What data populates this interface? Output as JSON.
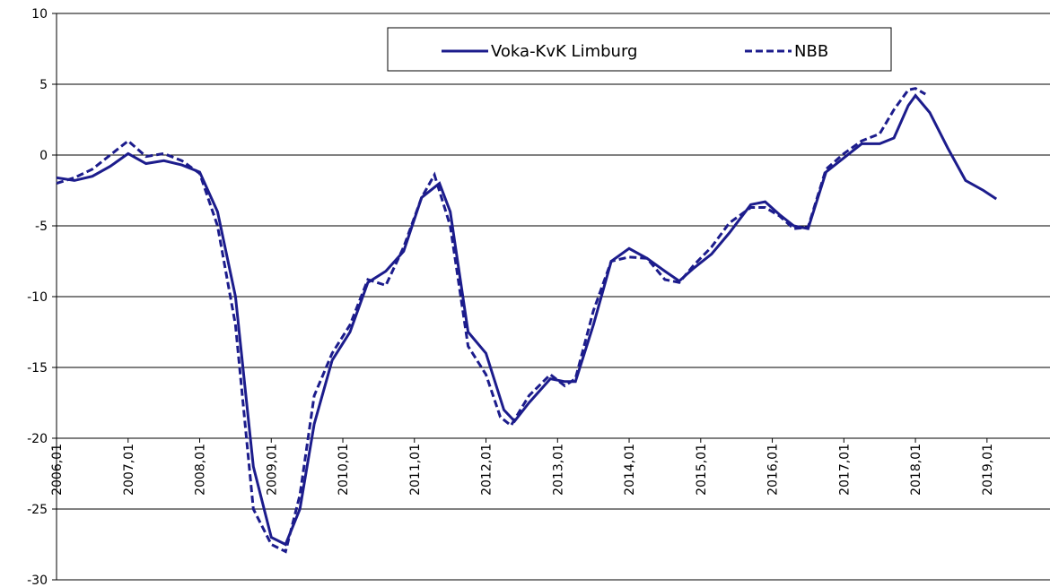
{
  "chart_data": {
    "type": "line",
    "xlim": [
      2006,
      2019.88
    ],
    "xticks": [
      {
        "value": 2006,
        "label": "2006,01"
      },
      {
        "value": 2007,
        "label": "2007,01"
      },
      {
        "value": 2008,
        "label": "2008,01"
      },
      {
        "value": 2009,
        "label": "2009,01"
      },
      {
        "value": 2010,
        "label": "2010,01"
      },
      {
        "value": 2011,
        "label": "2011,01"
      },
      {
        "value": 2012,
        "label": "2012,01"
      },
      {
        "value": 2013,
        "label": "2013,01"
      },
      {
        "value": 2014,
        "label": "2014,01"
      },
      {
        "value": 2015,
        "label": "2015,01"
      },
      {
        "value": 2016,
        "label": "2016,01"
      },
      {
        "value": 2017,
        "label": "2017,01"
      },
      {
        "value": 2018,
        "label": "2018,01"
      },
      {
        "value": 2019,
        "label": "2019,01"
      }
    ],
    "ylim": [
      -30,
      10
    ],
    "yticks": [
      -30,
      -25,
      -20,
      -15,
      -10,
      -5,
      0,
      5,
      10
    ],
    "x_axis_at": -20,
    "grid": true,
    "legend": "top",
    "series": [
      {
        "name": "Voka-KvK Limburg",
        "color": "#1c1c8c",
        "dash": false,
        "x": [
          2006.0,
          2006.25,
          2006.5,
          2006.75,
          2007.0,
          2007.25,
          2007.5,
          2007.75,
          2008.0,
          2008.25,
          2008.5,
          2008.75,
          2009.0,
          2009.2,
          2009.4,
          2009.6,
          2009.85,
          2010.1,
          2010.35,
          2010.6,
          2010.85,
          2011.1,
          2011.35,
          2011.5,
          2011.75,
          2012.0,
          2012.25,
          2012.4,
          2012.6,
          2012.9,
          2013.1,
          2013.25,
          2013.5,
          2013.75,
          2014.0,
          2014.25,
          2014.5,
          2014.7,
          2014.9,
          2015.15,
          2015.4,
          2015.7,
          2015.9,
          2016.1,
          2016.3,
          2016.5,
          2016.75,
          2017.0,
          2017.25,
          2017.5,
          2017.7,
          2017.9,
          2018.0,
          2018.2,
          2018.45,
          2018.7,
          2018.95,
          2019.13
        ],
        "values": [
          -1.6,
          -1.8,
          -1.5,
          -0.8,
          0.1,
          -0.6,
          -0.4,
          -0.7,
          -1.2,
          -4,
          -10,
          -22,
          -27,
          -27.5,
          -25,
          -19,
          -14.5,
          -12.5,
          -9,
          -8.2,
          -6.8,
          -3,
          -2,
          -4,
          -12.5,
          -14,
          -18,
          -18.8,
          -17.5,
          -15.8,
          -16,
          -16,
          -12,
          -7.5,
          -6.6,
          -7.3,
          -8.2,
          -8.9,
          -8,
          -7,
          -5.5,
          -3.5,
          -3.3,
          -4.2,
          -5,
          -5.2,
          -1.2,
          -0.2,
          0.8,
          0.8,
          1.2,
          3.5,
          4.2,
          3.0,
          0.5,
          -1.8,
          -2.5,
          -3.1
        ]
      },
      {
        "name": "NBB",
        "color": "#1c1c8c",
        "dash": true,
        "x": [
          2006.0,
          2006.25,
          2006.5,
          2006.75,
          2007.0,
          2007.25,
          2007.5,
          2007.75,
          2008.0,
          2008.25,
          2008.5,
          2008.75,
          2009.0,
          2009.2,
          2009.4,
          2009.6,
          2009.85,
          2010.1,
          2010.35,
          2010.6,
          2010.85,
          2011.1,
          2011.28,
          2011.5,
          2011.75,
          2012.0,
          2012.2,
          2012.35,
          2012.6,
          2012.9,
          2013.1,
          2013.25,
          2013.5,
          2013.75,
          2014.0,
          2014.25,
          2014.5,
          2014.7,
          2014.9,
          2015.15,
          2015.4,
          2015.7,
          2015.9,
          2016.1,
          2016.3,
          2016.5,
          2016.75,
          2017.0,
          2017.25,
          2017.5,
          2017.7,
          2017.9,
          2018.0,
          2018.14
        ],
        "values": [
          -2.0,
          -1.6,
          -1.0,
          0.0,
          1.0,
          -0.1,
          0.1,
          -0.4,
          -1.3,
          -5,
          -12,
          -25,
          -27.5,
          -28,
          -24,
          -17,
          -14,
          -12,
          -8.8,
          -9.2,
          -6.5,
          -3,
          -1.4,
          -5,
          -13.5,
          -15.5,
          -18.5,
          -19.1,
          -17,
          -15.5,
          -16.3,
          -15.8,
          -11,
          -7.5,
          -7.2,
          -7.3,
          -8.8,
          -9,
          -7.8,
          -6.5,
          -4.8,
          -3.7,
          -3.7,
          -4.3,
          -5.2,
          -5.1,
          -1.0,
          0.1,
          1.0,
          1.5,
          3.2,
          4.6,
          4.7,
          4.3
        ]
      }
    ]
  }
}
